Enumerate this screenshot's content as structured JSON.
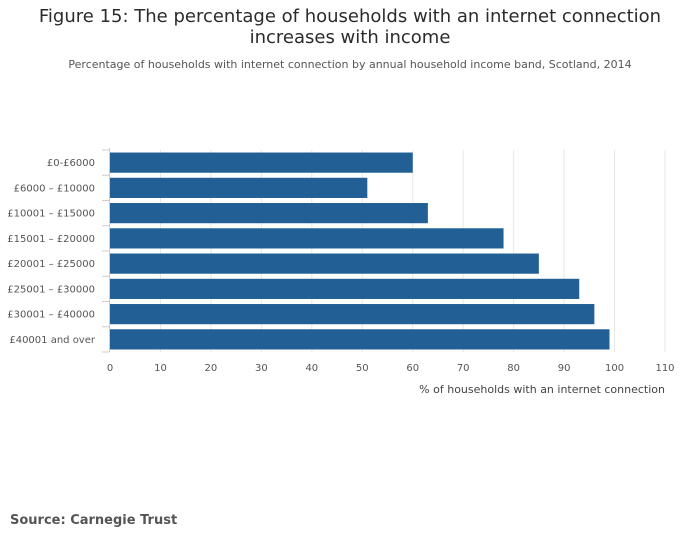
{
  "chart_data": {
    "type": "bar",
    "orientation": "horizontal",
    "title_lines": [
      "Figure 15: The percentage of households with an internet connection",
      "increases with income"
    ],
    "subtitle": "Percentage of households with internet connection by annual household income band, Scotland, 2014",
    "categories": [
      "£0-£6000",
      "£6000 – £10000",
      "£10001 – £15000",
      "£15001 – £20000",
      "£20001 – £25000",
      "£25001 – £30000",
      "£30001 – £40000",
      "£40001 and over"
    ],
    "values": [
      60,
      51,
      63,
      78,
      85,
      93,
      96,
      99
    ],
    "xlabel": "% of households with an internet connection",
    "ylabel": "",
    "xlim": [
      0,
      110
    ],
    "xticks": [
      0,
      10,
      20,
      30,
      40,
      50,
      60,
      70,
      80,
      90,
      100,
      110
    ],
    "grid": true,
    "bar_color": "#215f95",
    "grid_color": "#e6e6e6"
  },
  "footer": {
    "source": "Source: Carnegie Trust"
  }
}
